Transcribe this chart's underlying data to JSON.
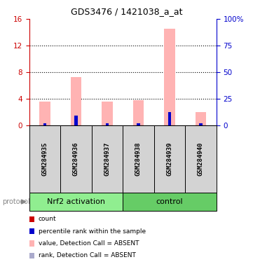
{
  "title": "GDS3476 / 1421038_a_at",
  "samples": [
    "GSM284935",
    "GSM284936",
    "GSM284937",
    "GSM284938",
    "GSM284939",
    "GSM284940"
  ],
  "pink_bar_values": [
    3.5,
    7.2,
    3.5,
    3.8,
    14.5,
    2.0
  ],
  "red_sq_values": [
    0.18,
    0.18,
    0.18,
    0.18,
    0.18,
    0.18
  ],
  "blue_sq_values_right": [
    1.5,
    9.0,
    1.5,
    1.5,
    12.0,
    1.5
  ],
  "pink_bar_color": "#ffb3b3",
  "red_sq_color": "#cc0000",
  "blue_sq_color": "#0000cc",
  "light_blue_color": "#aaaacc",
  "ylim_left": [
    0,
    16
  ],
  "ylim_right": [
    0,
    100
  ],
  "yticks_left": [
    0,
    4,
    8,
    12,
    16
  ],
  "yticks_right": [
    0,
    25,
    50,
    75,
    100
  ],
  "ytick_labels_right": [
    "0",
    "25",
    "50",
    "75",
    "100%"
  ],
  "left_axis_color": "#cc0000",
  "right_axis_color": "#0000cc",
  "bg_color": "#d3d3d3",
  "nrf2_color": "#90ee90",
  "ctrl_color": "#66cc66",
  "group_label_nrf2": "Nrf2 activation",
  "group_label_control": "control",
  "protocol_label": "protocol",
  "legend_labels": [
    "count",
    "percentile rank within the sample",
    "value, Detection Call = ABSENT",
    "rank, Detection Call = ABSENT"
  ],
  "legend_colors": [
    "#cc0000",
    "#0000cc",
    "#ffb3b3",
    "#aaaacc"
  ]
}
